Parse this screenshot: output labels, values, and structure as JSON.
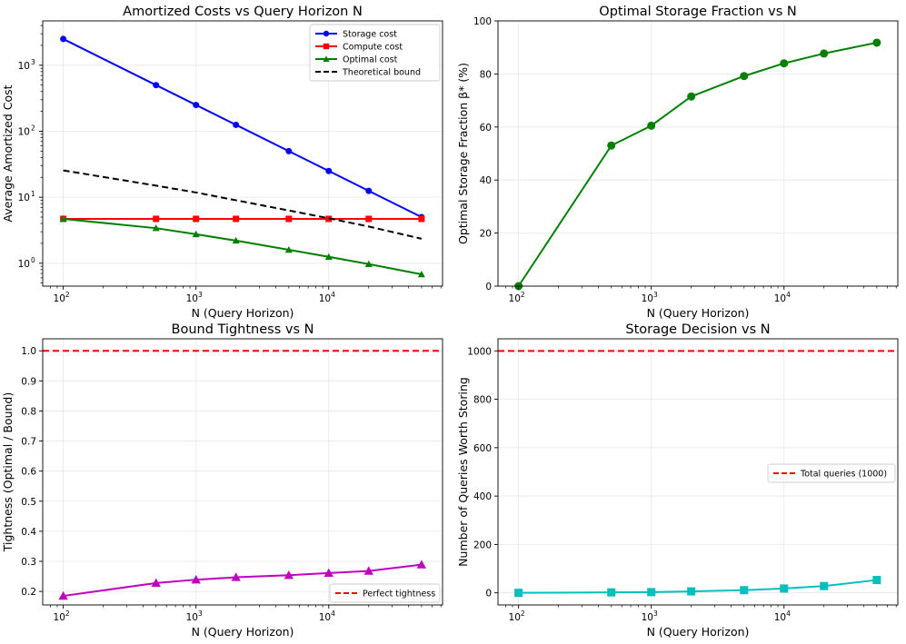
{
  "figure": {
    "background": "#ffffff"
  },
  "chart_data": [
    {
      "id": "amortized",
      "type": "line",
      "title": "Amortized Costs vs Query Horizon N",
      "xlabel": "N (Query Horizon)",
      "ylabel": "Average Amortized Cost",
      "xscale": "log",
      "yscale": "log",
      "xlim": [
        70,
        72000
      ],
      "ylim": [
        0.45,
        4700
      ],
      "x": [
        100,
        500,
        1000,
        2000,
        5000,
        10000,
        20000,
        50000
      ],
      "xticks": [
        {
          "value": 100,
          "base": "10",
          "exp": "2"
        },
        {
          "value": 1000,
          "base": "10",
          "exp": "3"
        },
        {
          "value": 10000,
          "base": "10",
          "exp": "4"
        }
      ],
      "yticks": [
        {
          "value": 1,
          "base": "10",
          "exp": "0"
        },
        {
          "value": 10,
          "base": "10",
          "exp": "1"
        },
        {
          "value": 100,
          "base": "10",
          "exp": "2"
        },
        {
          "value": 1000,
          "base": "10",
          "exp": "3"
        }
      ],
      "grid": true,
      "legend_position": "top-right",
      "series": [
        {
          "name": "Storage cost",
          "color": "#0000ff",
          "marker": "circle",
          "dash": "solid",
          "values": [
            2500,
            500,
            250,
            125,
            50,
            25,
            12.5,
            5
          ]
        },
        {
          "name": "Compute cost",
          "color": "#ff0000",
          "marker": "square",
          "dash": "solid",
          "values": [
            4.7,
            4.7,
            4.7,
            4.7,
            4.7,
            4.7,
            4.7,
            4.7
          ]
        },
        {
          "name": "Optimal cost",
          "color": "#008000",
          "marker": "triangle",
          "dash": "solid",
          "values": [
            4.7,
            3.4,
            2.75,
            2.2,
            1.6,
            1.25,
            0.97,
            0.68
          ]
        },
        {
          "name": "Theoretical bound",
          "color": "#000000",
          "marker": "none",
          "dash": "dashed",
          "values": [
            25.5,
            15.0,
            11.8,
            9.0,
            6.3,
            4.8,
            3.6,
            2.35
          ]
        }
      ]
    },
    {
      "id": "fraction",
      "type": "line",
      "title": "Optimal Storage Fraction vs N",
      "xlabel": "N (Query Horizon)",
      "ylabel": "Optimal Storage Fraction β* (%)",
      "xscale": "log",
      "yscale": "linear",
      "xlim": [
        70,
        72000
      ],
      "ylim": [
        0,
        100
      ],
      "x": [
        100,
        500,
        1000,
        2000,
        5000,
        10000,
        20000,
        50000
      ],
      "xticks": [
        {
          "value": 100,
          "base": "10",
          "exp": "2"
        },
        {
          "value": 1000,
          "base": "10",
          "exp": "3"
        },
        {
          "value": 10000,
          "base": "10",
          "exp": "4"
        }
      ],
      "yticks": [
        {
          "value": 0,
          "label": "0"
        },
        {
          "value": 20,
          "label": "20"
        },
        {
          "value": 40,
          "label": "40"
        },
        {
          "value": 60,
          "label": "60"
        },
        {
          "value": 80,
          "label": "80"
        },
        {
          "value": 100,
          "label": "100"
        }
      ],
      "grid": true,
      "series": [
        {
          "name": "β*",
          "color": "#008000",
          "marker": "circle",
          "dash": "solid",
          "values": [
            0,
            53,
            60.5,
            71.5,
            79.2,
            84,
            87.7,
            91.8
          ]
        }
      ]
    },
    {
      "id": "tightness",
      "type": "line",
      "title": "Bound Tightness vs N",
      "xlabel": "N (Query Horizon)",
      "ylabel": "Tightness (Optimal / Bound)",
      "xscale": "log",
      "yscale": "linear",
      "xlim": [
        70,
        72000
      ],
      "ylim": [
        0.155,
        1.04
      ],
      "x": [
        100,
        500,
        1000,
        2000,
        5000,
        10000,
        20000,
        50000
      ],
      "xticks": [
        {
          "value": 100,
          "base": "10",
          "exp": "2"
        },
        {
          "value": 1000,
          "base": "10",
          "exp": "3"
        },
        {
          "value": 10000,
          "base": "10",
          "exp": "4"
        }
      ],
      "yticks": [
        {
          "value": 0.2,
          "label": "0.2"
        },
        {
          "value": 0.3,
          "label": "0.3"
        },
        {
          "value": 0.4,
          "label": "0.4"
        },
        {
          "value": 0.5,
          "label": "0.5"
        },
        {
          "value": 0.6,
          "label": "0.6"
        },
        {
          "value": 0.7,
          "label": "0.7"
        },
        {
          "value": 0.8,
          "label": "0.8"
        },
        {
          "value": 0.9,
          "label": "0.9"
        },
        {
          "value": 1.0,
          "label": "1.0"
        }
      ],
      "grid": true,
      "legend_position": "lower-right",
      "series": [
        {
          "name": "Tightness",
          "color": "#bf00bf",
          "marker": "triangle",
          "dash": "solid",
          "values": [
            0.185,
            0.228,
            0.239,
            0.247,
            0.254,
            0.261,
            0.268,
            0.289
          ]
        }
      ],
      "reference_lines": [
        {
          "name": "Perfect tightness",
          "value": 1.0,
          "color": "#ff0000",
          "dash": "dashed"
        }
      ]
    },
    {
      "id": "decision",
      "type": "line",
      "title": "Storage Decision vs N",
      "xlabel": "N (Query Horizon)",
      "ylabel": "Number of Queries Worth Storing",
      "xscale": "log",
      "yscale": "linear",
      "xlim": [
        70,
        72000
      ],
      "ylim": [
        -50,
        1050
      ],
      "x": [
        100,
        500,
        1000,
        2000,
        5000,
        10000,
        20000,
        50000
      ],
      "xticks": [
        {
          "value": 100,
          "base": "10",
          "exp": "2"
        },
        {
          "value": 1000,
          "base": "10",
          "exp": "3"
        },
        {
          "value": 10000,
          "base": "10",
          "exp": "4"
        }
      ],
      "yticks": [
        {
          "value": 0,
          "label": "0"
        },
        {
          "value": 200,
          "label": "200"
        },
        {
          "value": 400,
          "label": "400"
        },
        {
          "value": 600,
          "label": "600"
        },
        {
          "value": 800,
          "label": "800"
        },
        {
          "value": 1000,
          "label": "1000"
        }
      ],
      "grid": true,
      "legend_position": "center-right",
      "series": [
        {
          "name": "Queries worth storing",
          "color": "#00bfbf",
          "marker": "square",
          "dash": "solid",
          "values": [
            0,
            2,
            3,
            6,
            11,
            18,
            28,
            53
          ]
        }
      ],
      "reference_lines": [
        {
          "name": "Total queries (1000)",
          "value": 1000,
          "color": "#ff0000",
          "dash": "dashed"
        }
      ]
    }
  ]
}
